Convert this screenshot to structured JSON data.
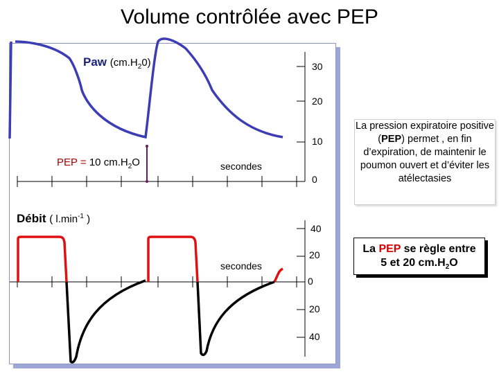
{
  "title": {
    "main": "Volume contrôlée avec",
    "bold": "PEP"
  },
  "paw_label": {
    "name": "Paw",
    "unit_pre": "(cm.H",
    "unit_sub": "2",
    "unit_post": "0)"
  },
  "pep_label": {
    "name": "PEP =",
    "value_pre": "10 cm.H",
    "value_sub": "2",
    "value_post": "O"
  },
  "debit_label": {
    "name": "Débit",
    "unit_pre": "( l.min",
    "unit_sup": "-1",
    "unit_post": " )"
  },
  "seconds_label_top": "secondes",
  "seconds_label_bottom": "secondes",
  "pressure_ticks": [
    "30",
    "20",
    "10",
    "0"
  ],
  "flow_ticks": [
    "40",
    "20",
    "0",
    "20",
    "40"
  ],
  "note": {
    "line_pre": "La pression expiratoire positive (",
    "line_bold": "PEP",
    "line_post": ") permet , en fin d’expiration, de maintenir le poumon ouvert et d’éviter les atélectasies"
  },
  "pep_range_box": {
    "pre": "La",
    "accent": "PEP",
    "mid": "se règle entre",
    "line2_pre": "5 et 20 cm.H",
    "line2_sub": "2",
    "line2_post": "O"
  },
  "colors": {
    "pressure_curve": "#3c3cb4",
    "flow_insp": "#e01010",
    "flow_exp": "#000000",
    "pep_marker": "#6a1a5a",
    "panel_shadow": "#9ea6d6"
  }
}
